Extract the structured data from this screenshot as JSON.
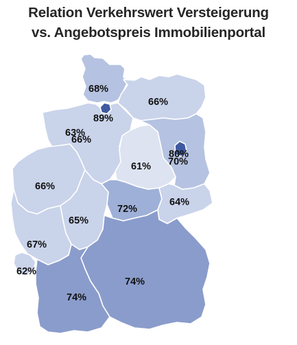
{
  "title_line1": "Relation Verkehrswert Versteigerung",
  "title_line2": "vs. Angebotspreis Immobilienportal",
  "colors": {
    "lightest": "#dde3f1",
    "light": "#c9d3ea",
    "medium": "#b5c2e1",
    "medium_dark": "#9fb0d8",
    "dark": "#8a9ccb",
    "darkest": "#3f5aa0"
  },
  "states": {
    "schleswig_holstein": {
      "value": "68%",
      "color": "#b5c2e1"
    },
    "hamburg": {
      "value": "89%",
      "color": "#3f5aa0"
    },
    "mecklenburg_vorpommern": {
      "value": "66%",
      "color": "#c9d3ea"
    },
    "bremen": {
      "value": "63%",
      "color": "#c9d3ea"
    },
    "niedersachsen": {
      "value": "66%",
      "color": "#c9d3ea"
    },
    "sachsen_anhalt": {
      "value": "61%",
      "color": "#dde3f1"
    },
    "berlin": {
      "value": "80%",
      "color": "#3f5aa0"
    },
    "brandenburg": {
      "value": "70%",
      "color": "#b5c2e1"
    },
    "nordrhein_westfalen": {
      "value": "66%",
      "color": "#c9d3ea"
    },
    "niedersachsen_duplicate_marker": null,
    "thueringen": {
      "value": "72%",
      "color": "#9fb0d8"
    },
    "sachsen": {
      "value": "64%",
      "color": "#c9d3ea"
    },
    "hessen": {
      "value": "65%",
      "color": "#c9d3ea"
    },
    "rheinland_pfalz": {
      "value": "67%",
      "color": "#c9d3ea"
    },
    "saarland": {
      "value": "62%",
      "color": "#c9d3ea"
    },
    "bayern": {
      "value": "74%",
      "color": "#8a9ccb"
    },
    "baden_wuerttemberg": {
      "value": "74%",
      "color": "#8a9ccb"
    }
  }
}
